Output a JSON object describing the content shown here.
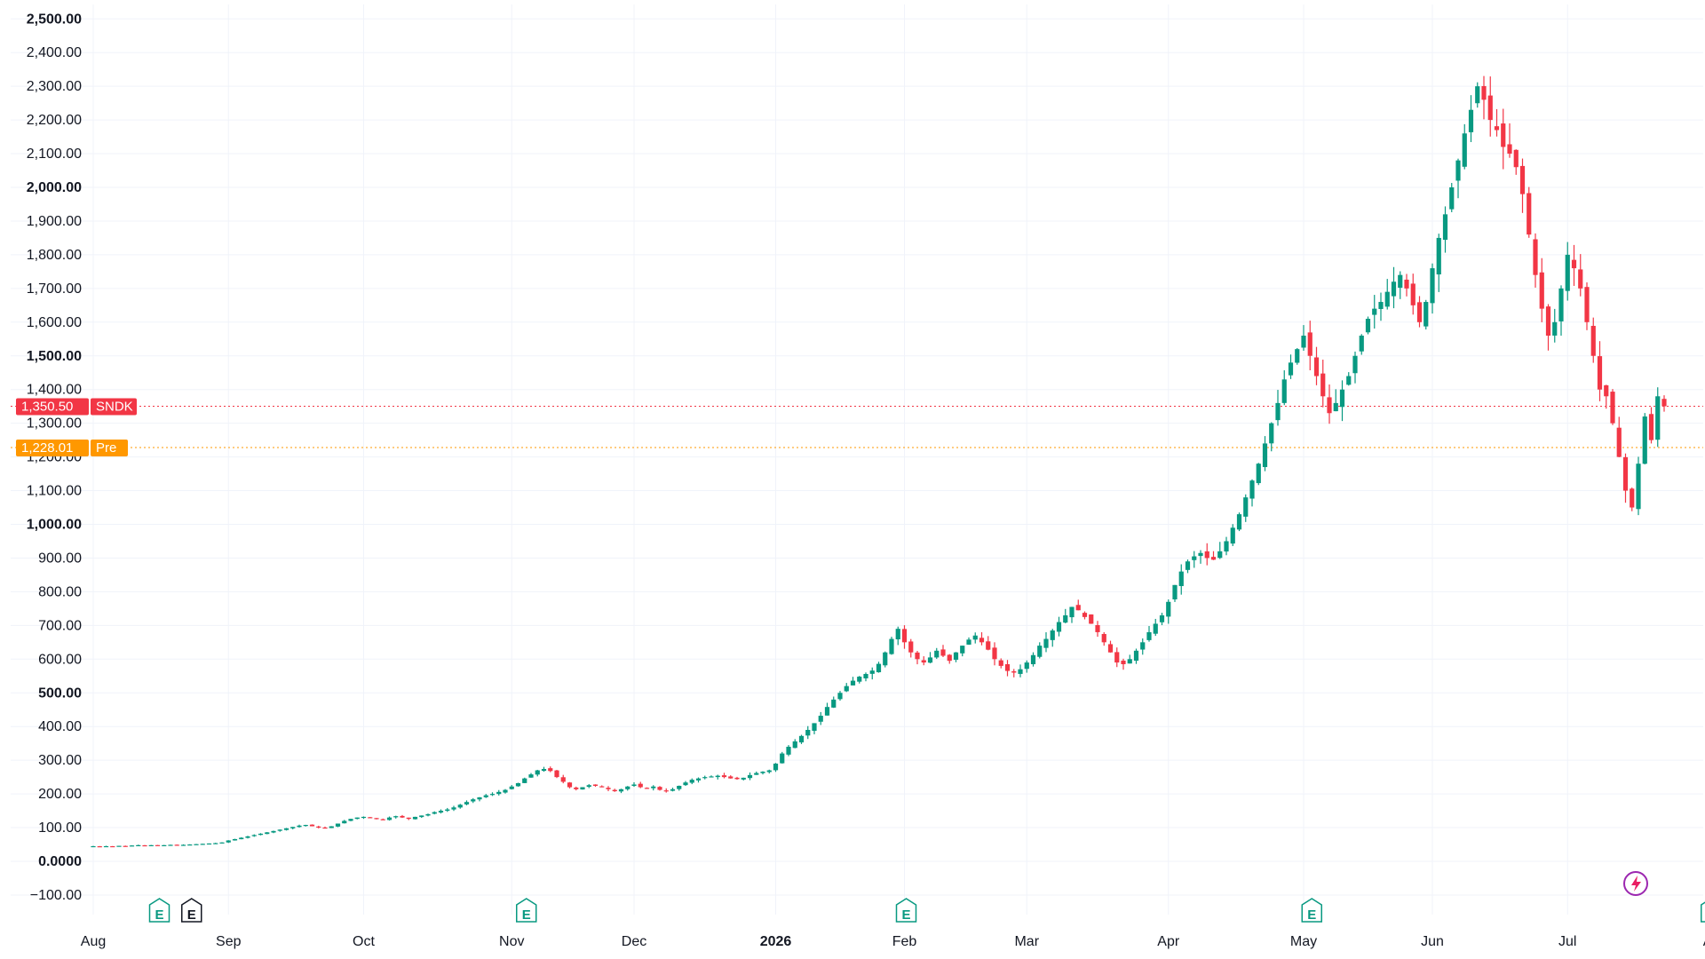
{
  "chart_data": {
    "type": "candlestick",
    "ylim": [
      -150,
      2550
    ],
    "y_ticks": [
      {
        "value": 2500,
        "label": "2,500.00",
        "major": true
      },
      {
        "value": 2400,
        "label": "2,400.00"
      },
      {
        "value": 2300,
        "label": "2,300.00"
      },
      {
        "value": 2200,
        "label": "2,200.00"
      },
      {
        "value": 2100,
        "label": "2,100.00"
      },
      {
        "value": 2000,
        "label": "2,000.00",
        "major": true
      },
      {
        "value": 1900,
        "label": "1,900.00"
      },
      {
        "value": 1800,
        "label": "1,800.00"
      },
      {
        "value": 1700,
        "label": "1,700.00"
      },
      {
        "value": 1600,
        "label": "1,600.00"
      },
      {
        "value": 1500,
        "label": "1,500.00",
        "major": true
      },
      {
        "value": 1400,
        "label": "1,400.00"
      },
      {
        "value": 1300,
        "label": "1,300.00"
      },
      {
        "value": 1200,
        "label": "1,200.00"
      },
      {
        "value": 1100,
        "label": "1,100.00"
      },
      {
        "value": 1000,
        "label": "1,000.00",
        "major": true
      },
      {
        "value": 900,
        "label": "900.00"
      },
      {
        "value": 800,
        "label": "800.00"
      },
      {
        "value": 700,
        "label": "700.00"
      },
      {
        "value": 600,
        "label": "600.00"
      },
      {
        "value": 500,
        "label": "500.00",
        "major": true
      },
      {
        "value": 400,
        "label": "400.00"
      },
      {
        "value": 300,
        "label": "300.00"
      },
      {
        "value": 200,
        "label": "200.00"
      },
      {
        "value": 100,
        "label": "100.00"
      },
      {
        "value": 0,
        "label": "0.0000",
        "major": true
      },
      {
        "value": -100,
        "label": "−100.00"
      }
    ],
    "x_ticks": [
      {
        "bar": 0,
        "label": "Aug"
      },
      {
        "bar": 21,
        "label": "Sep"
      },
      {
        "bar": 42,
        "label": "Oct"
      },
      {
        "bar": 65,
        "label": "Nov"
      },
      {
        "bar": 84,
        "label": "Dec"
      },
      {
        "bar": 106,
        "label": "2026",
        "major": true
      },
      {
        "bar": 126,
        "label": "Feb"
      },
      {
        "bar": 145,
        "label": "Mar"
      },
      {
        "bar": 167,
        "label": "Apr"
      },
      {
        "bar": 188,
        "label": "May"
      },
      {
        "bar": 208,
        "label": "Jun"
      },
      {
        "bar": 229,
        "label": "Jul"
      },
      {
        "bar": 252,
        "label": "Aug"
      }
    ],
    "closes": [
      45,
      44,
      45,
      44,
      46,
      45,
      47,
      48,
      47,
      48,
      47,
      48,
      49,
      48,
      49,
      50,
      51,
      52,
      53,
      54,
      56,
      62,
      66,
      70,
      74,
      78,
      82,
      86,
      90,
      94,
      98,
      102,
      106,
      108,
      104,
      100,
      98,
      104,
      112,
      120,
      126,
      130,
      132,
      128,
      126,
      124,
      130,
      134,
      130,
      126,
      132,
      136,
      140,
      146,
      150,
      154,
      160,
      168,
      176,
      184,
      190,
      196,
      200,
      206,
      212,
      222,
      232,
      246,
      258,
      270,
      274,
      268,
      250,
      236,
      220,
      214,
      220,
      226,
      224,
      220,
      214,
      208,
      214,
      222,
      228,
      220,
      216,
      222,
      212,
      208,
      214,
      224,
      234,
      242,
      246,
      250,
      252,
      254,
      250,
      246,
      244,
      248,
      256,
      262,
      266,
      270,
      290,
      320,
      340,
      356,
      372,
      390,
      410,
      432,
      458,
      480,
      500,
      520,
      536,
      548,
      556,
      566,
      586,
      620,
      660,
      690,
      650,
      620,
      600,
      590,
      605,
      625,
      610,
      595,
      620,
      640,
      658,
      670,
      650,
      628,
      600,
      580,
      565,
      560,
      570,
      590,
      612,
      640,
      660,
      685,
      710,
      730,
      755,
      745,
      725,
      705,
      680,
      650,
      620,
      590,
      585,
      600,
      625,
      650,
      680,
      705,
      730,
      770,
      820,
      860,
      890,
      905,
      915,
      900,
      895,
      920,
      950,
      990,
      1030,
      1080,
      1130,
      1180,
      1240,
      1300,
      1360,
      1430,
      1480,
      1520,
      1560,
      1500,
      1440,
      1380,
      1330,
      1360,
      1400,
      1440,
      1500,
      1560,
      1610,
      1640,
      1660,
      1690,
      1720,
      1740,
      1700,
      1650,
      1600,
      1660,
      1760,
      1850,
      1920,
      2000,
      2080,
      2160,
      2230,
      2300,
      2260,
      2200,
      2170,
      2120,
      2100,
      2060,
      1980,
      1860,
      1740,
      1640,
      1560,
      1600,
      1700,
      1800,
      1760,
      1700,
      1600,
      1500,
      1400,
      1380,
      1300,
      1200,
      1100,
      1050,
      1180,
      1320,
      1250,
      1380,
      1350.5
    ],
    "price_lines": [
      {
        "name": "SNDK",
        "value": 1350.5,
        "label": "1,350.50",
        "color": "#f23645"
      },
      {
        "name": "Pre",
        "value": 1228.01,
        "label": "1,228.01",
        "color": "#ff9800"
      }
    ],
    "events": [
      {
        "bar": 10,
        "label": "E",
        "color": "#089981"
      },
      {
        "bar": 15,
        "label": "E",
        "color": "#131722"
      },
      {
        "bar": 67,
        "label": "E",
        "color": "#089981"
      },
      {
        "bar": 126,
        "label": "E",
        "color": "#089981"
      },
      {
        "bar": 189,
        "label": "E",
        "color": "#089981"
      },
      {
        "bar": 251,
        "label": "E",
        "color": "#089981"
      }
    ],
    "up_color": "#089981",
    "down_color": "#f23645",
    "grid": true
  }
}
